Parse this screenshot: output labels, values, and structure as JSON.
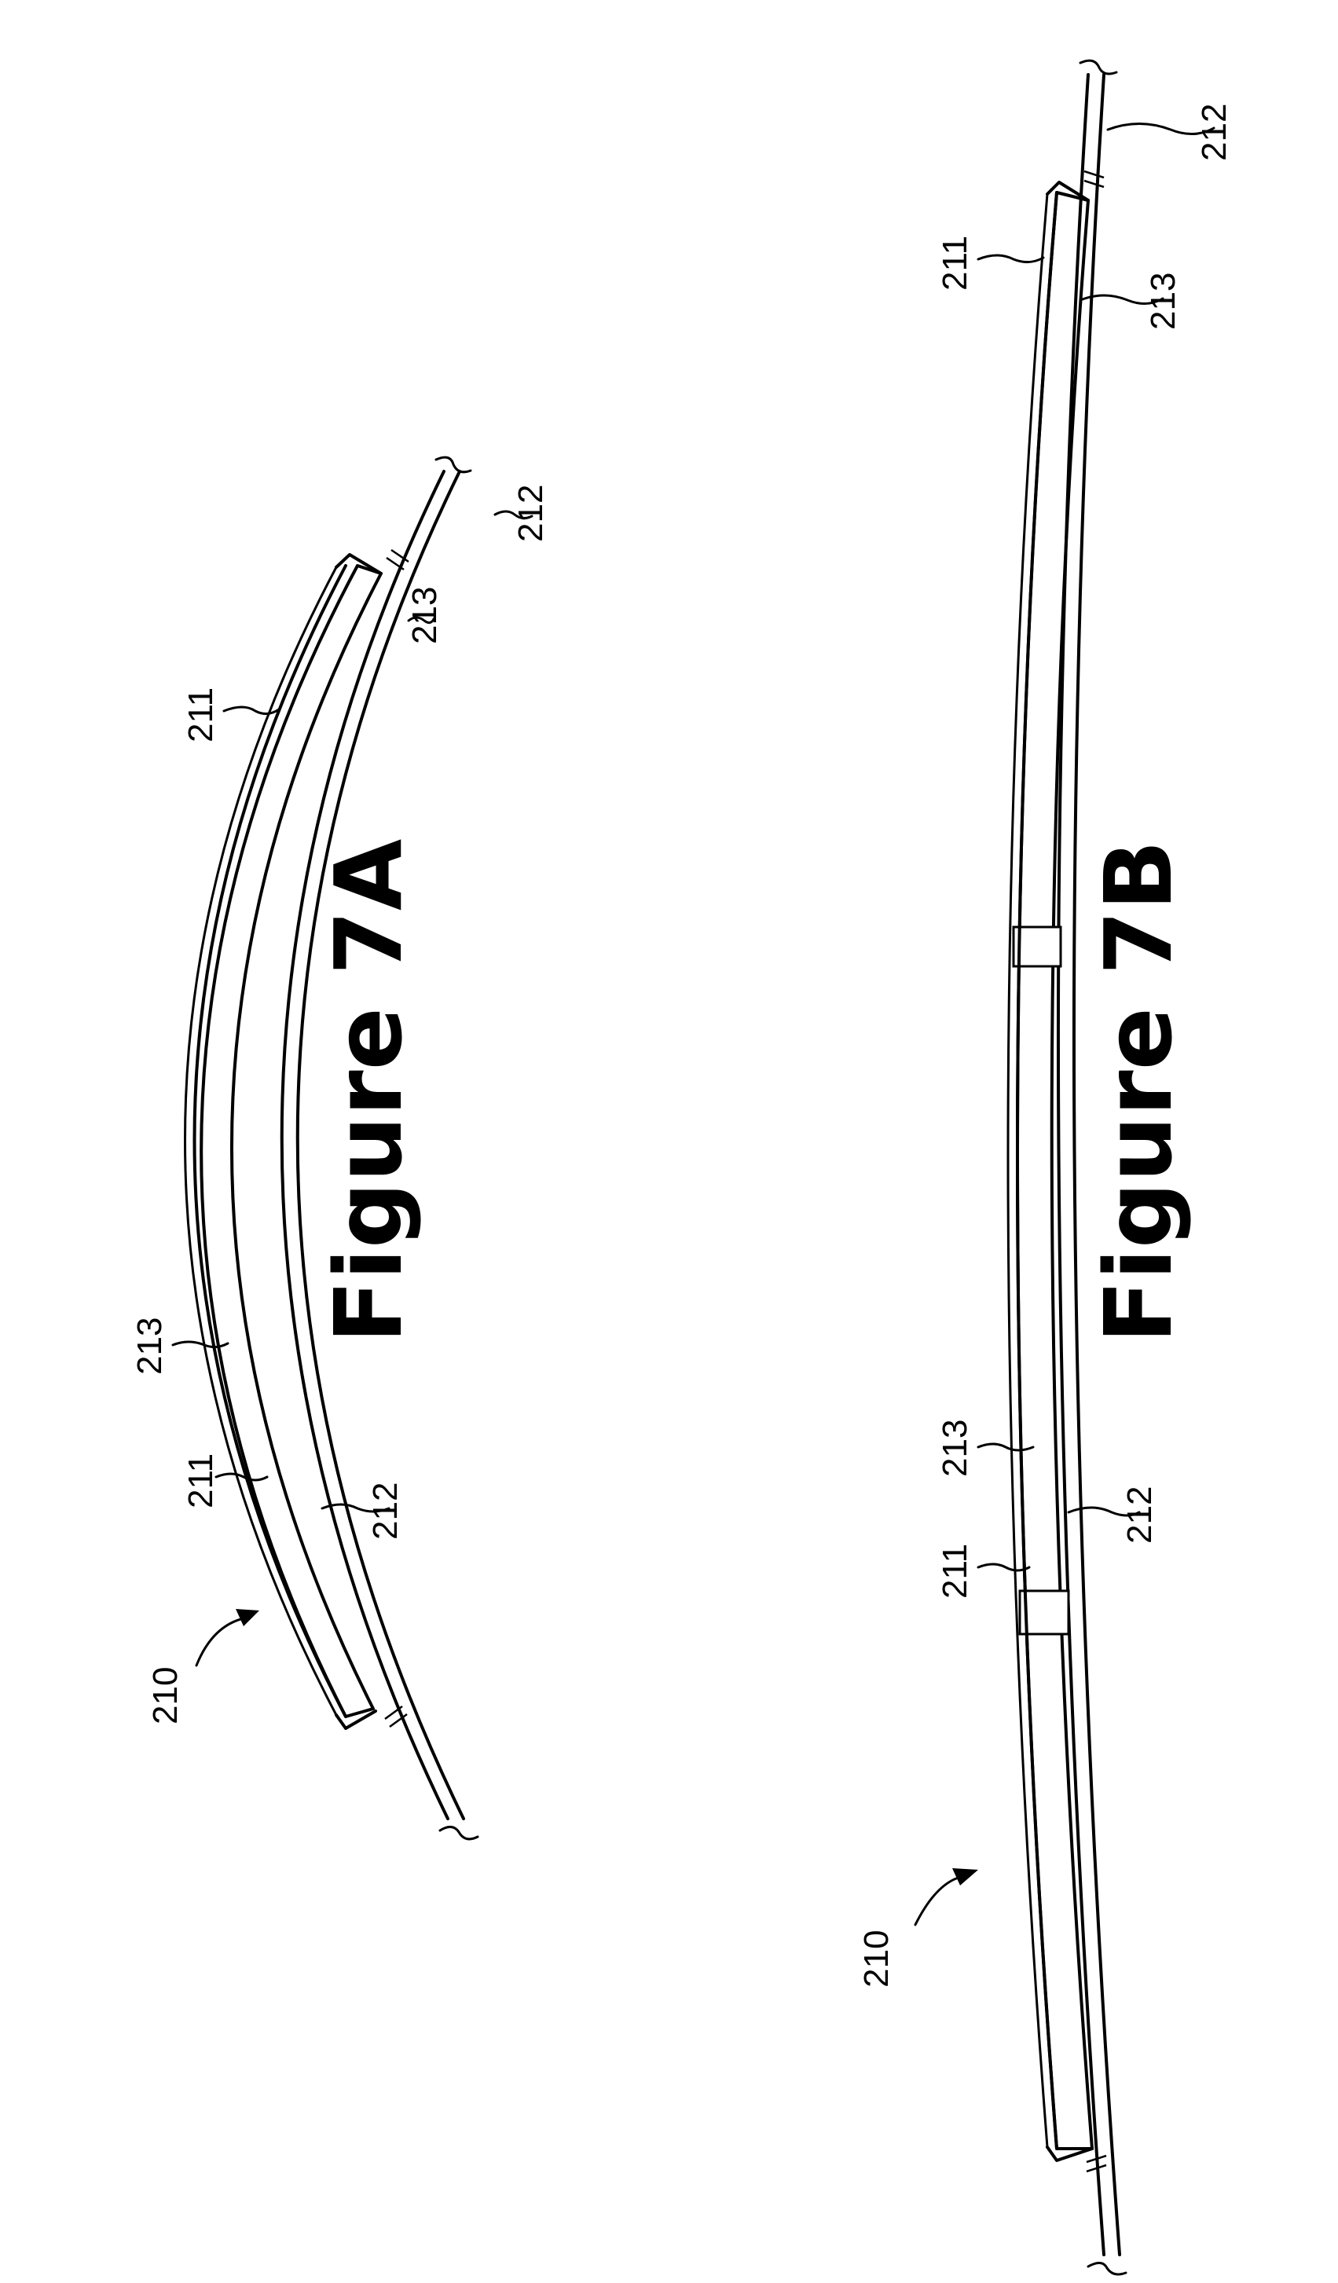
{
  "figure_a": {
    "caption": "Figure 7A",
    "labels": {
      "ref_210": "210",
      "ref_211_upper": "211",
      "ref_211_lower": "211",
      "ref_212_upper": "212",
      "ref_212_lower": "212",
      "ref_213_upper": "213",
      "ref_213_lower": "213"
    }
  },
  "figure_b": {
    "caption": "Figure 7B",
    "labels": {
      "ref_210": "210",
      "ref_211_upper": "211",
      "ref_211_lower": "211",
      "ref_212_upper": "212",
      "ref_212_lower": "212",
      "ref_213_upper": "213",
      "ref_213_lower": "213"
    }
  },
  "colors": {
    "line": "#000000",
    "background": "#ffffff"
  }
}
